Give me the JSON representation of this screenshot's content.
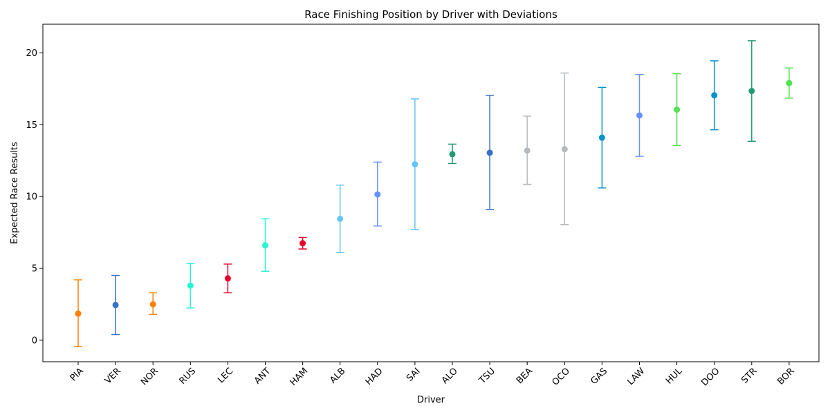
{
  "chart_data": {
    "type": "scatter",
    "title": "Race Finishing Position by Driver with Deviations",
    "xlabel": "Driver",
    "ylabel": "Expected Race Results",
    "ylim": [
      -1.5,
      22
    ],
    "yticks": [
      0,
      5,
      10,
      15,
      20
    ],
    "grid": false,
    "legend": "none",
    "categories": [
      "PIA",
      "VER",
      "NOR",
      "RUS",
      "LEC",
      "ANT",
      "HAM",
      "ALB",
      "HAD",
      "SAI",
      "ALO",
      "TSU",
      "BEA",
      "OCO",
      "GAS",
      "LAW",
      "HUL",
      "DOO",
      "STR",
      "BOR"
    ],
    "values": [
      1.85,
      2.45,
      2.5,
      3.8,
      4.3,
      6.6,
      6.75,
      8.45,
      10.15,
      12.25,
      12.95,
      13.05,
      13.2,
      13.3,
      14.1,
      15.65,
      16.05,
      17.05,
      17.35,
      17.9
    ],
    "lower": [
      -0.45,
      0.4,
      1.8,
      2.25,
      3.3,
      4.8,
      6.35,
      6.1,
      7.95,
      7.7,
      12.3,
      9.1,
      10.85,
      8.05,
      10.6,
      12.8,
      13.55,
      14.65,
      13.85,
      16.85
    ],
    "upper": [
      4.2,
      4.5,
      3.3,
      5.35,
      5.3,
      8.45,
      7.15,
      10.8,
      12.4,
      16.8,
      13.65,
      17.05,
      15.6,
      18.6,
      17.6,
      18.5,
      18.55,
      19.45,
      20.85,
      18.95
    ],
    "colors": [
      "#ff8000",
      "#3671c6",
      "#ff8000",
      "#27f4d2",
      "#e8002d",
      "#27f4d2",
      "#e8002d",
      "#64c4ff",
      "#6692ff",
      "#64c4ff",
      "#229971",
      "#3671c6",
      "#b6babd",
      "#b6babd",
      "#0093cc",
      "#6692ff",
      "#52e252",
      "#0093cc",
      "#229971",
      "#52e252"
    ]
  }
}
